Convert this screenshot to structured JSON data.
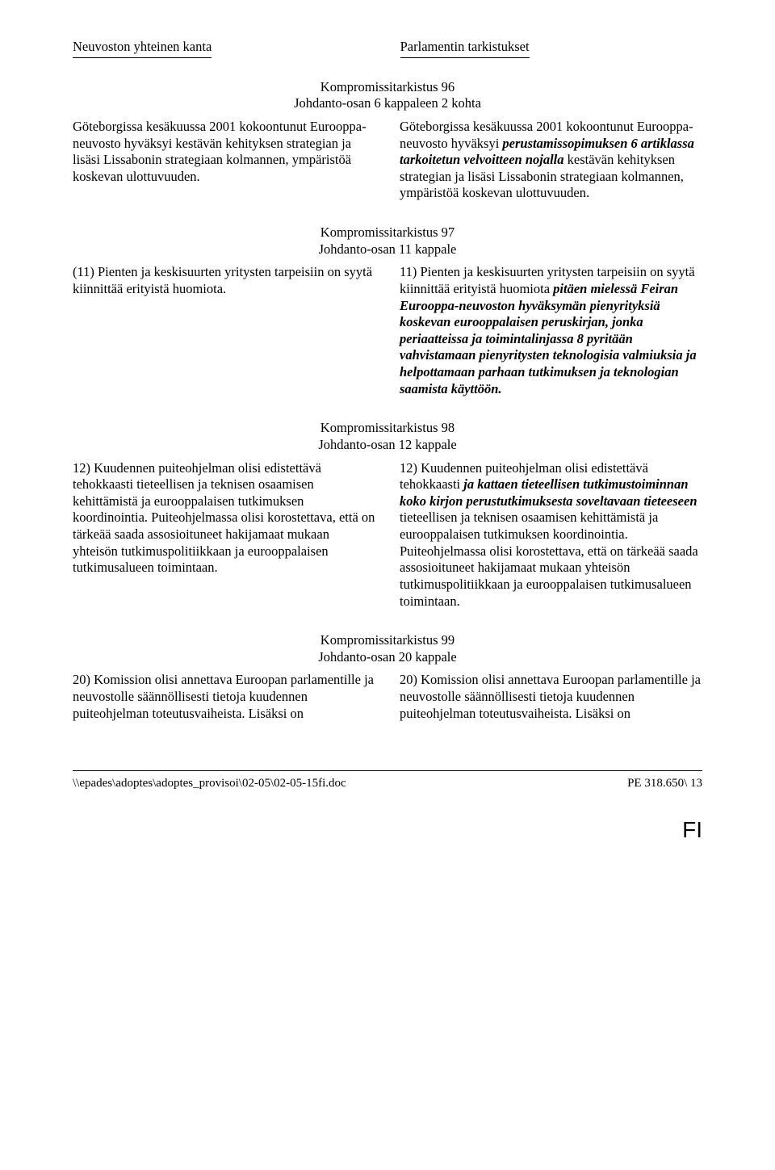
{
  "headers": {
    "left": "Neuvoston yhteinen kanta",
    "right": "Parlamentin tarkistukset"
  },
  "amendments": {
    "a96": {
      "title": "Kompromissitarkistus 96",
      "subtitle": "Johdanto-osan 6 kappaleen 2 kohta",
      "left": "Göteborgissa kesäkuussa 2001 kokoontunut Eurooppa-neuvosto hyväksyi kestävän kehityksen strategian ja lisäsi Lissabonin strategiaan kolmannen, ympäristöä koskevan ulottuvuuden.",
      "right_before": "Göteborgissa kesäkuussa 2001 kokoontunut Eurooppa-neuvosto hyväksyi ",
      "right_italic": "perustamissopimuksen 6 artiklassa tarkoitetun velvoitteen nojalla",
      "right_after": " kestävän kehityksen strategian ja lisäsi Lissabonin strategiaan kolmannen, ympäristöä koskevan ulottuvuuden."
    },
    "a97": {
      "title": "Kompromissitarkistus 97",
      "subtitle": "Johdanto-osan 11 kappale",
      "left": "(11) Pienten ja keskisuurten yritysten tarpeisiin on syytä kiinnittää erityistä huomiota.",
      "right_before": "11) Pienten ja keskisuurten yritysten tarpeisiin on syytä kiinnittää erityistä huomiota ",
      "right_italic": "pitäen mielessä Feiran Eurooppa-neuvoston hyväksymän pienyrityksiä koskevan eurooppalaisen peruskirjan, jonka periaatteissa ja toimintalinjassa 8 pyritään vahvistamaan pienyritysten teknologisia valmiuksia ja helpottamaan parhaan tutkimuksen ja teknologian saamista käyttöön.",
      "right_after": ""
    },
    "a98": {
      "title": "Kompromissitarkistus 98",
      "subtitle": "Johdanto-osan 12 kappale",
      "left": "12) Kuudennen puiteohjelman olisi edistettävä tehokkaasti tieteellisen ja teknisen osaamisen kehittämistä ja eurooppalaisen tutkimuksen koordinointia. Puiteohjelmassa olisi korostettava, että on tärkeää saada assosioituneet hakijamaat mukaan yhteisön tutkimuspolitiikkaan ja eurooppalaisen tutkimusalueen toimintaan.",
      "right_p1_before": "12) Kuudennen puiteohjelman olisi edistettävä tehokkaasti ",
      "right_p1_italic": "ja kattaen tieteellisen tutkimustoiminnan koko kirjon perustutkimuksesta soveltavaan tieteeseen",
      "right_p1_after": " tieteellisen ja teknisen osaamisen kehittämistä ja eurooppalaisen tutkimuksen koordinointia. Puiteohjelmassa olisi korostettava, että on tärkeää saada assosioituneet hakijamaat mukaan yhteisön tutkimuspolitiikkaan ja eurooppalaisen tutkimusalueen toimintaan."
    },
    "a99": {
      "title": "Kompromissitarkistus 99",
      "subtitle": "Johdanto-osan 20 kappale",
      "left": "20) Komission olisi annettava Euroopan parlamentille ja neuvostolle säännöllisesti tietoja kuudennen puiteohjelman toteutusvaiheista. Lisäksi on",
      "right": "20) Komission olisi annettava Euroopan parlamentille ja neuvostolle säännöllisesti tietoja kuudennen puiteohjelman toteutusvaiheista. Lisäksi on"
    }
  },
  "footer": {
    "left": "\\\\epades\\adoptes\\adoptes_provisoi\\02-05\\02-05-15fi.doc",
    "right": "PE 318.650\\ 13"
  },
  "lang": "FI"
}
